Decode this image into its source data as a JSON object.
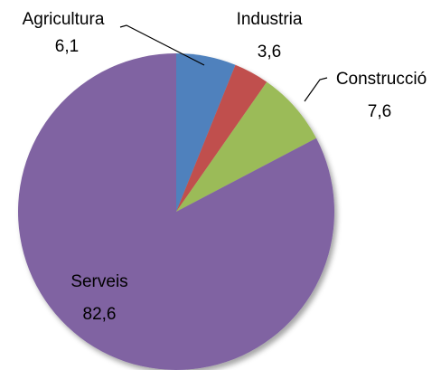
{
  "chart_data": {
    "type": "pie",
    "categories": [
      "Agricultura",
      "Industria",
      "Construcció",
      "Serveis"
    ],
    "values": [
      6.1,
      3.6,
      7.6,
      82.6
    ],
    "value_labels": [
      "6,1",
      "3,6",
      "7,6",
      "82,6"
    ],
    "colors": [
      "#4f81bd",
      "#c0504d",
      "#9bbb59",
      "#8064a2"
    ]
  }
}
